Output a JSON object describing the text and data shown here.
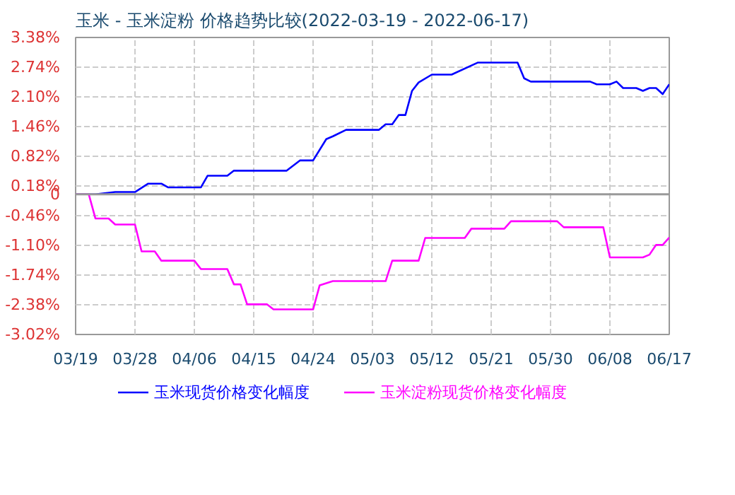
{
  "chart_data": {
    "type": "line",
    "title": "玉米 - 玉米淀粉 价格趋势比较(2022-03-19 - 2022-06-17)",
    "series": [
      {
        "name": "玉米现货价格变化幅度",
        "color": "#0000ff",
        "x": [
          "2022-03-19",
          "2022-03-22",
          "2022-03-25",
          "2022-03-28",
          "2022-03-30",
          "2022-04-01",
          "2022-04-02",
          "2022-04-07",
          "2022-04-08",
          "2022-04-11",
          "2022-04-12",
          "2022-04-20",
          "2022-04-22",
          "2022-04-24",
          "2022-04-26",
          "2022-04-27",
          "2022-04-29",
          "2022-05-04",
          "2022-05-05",
          "2022-05-06",
          "2022-05-07",
          "2022-05-08",
          "2022-05-09",
          "2022-05-10",
          "2022-05-12",
          "2022-05-15",
          "2022-05-19",
          "2022-05-25",
          "2022-05-26",
          "2022-05-27",
          "2022-06-05",
          "2022-06-06",
          "2022-06-08",
          "2022-06-09",
          "2022-06-10",
          "2022-06-12",
          "2022-06-13",
          "2022-06-14",
          "2022-06-15",
          "2022-06-16",
          "2022-06-17"
        ],
        "values": [
          0,
          0,
          0.05,
          0.05,
          0.23,
          0.23,
          0.15,
          0.15,
          0.4,
          0.4,
          0.51,
          0.51,
          0.73,
          0.73,
          1.19,
          1.25,
          1.39,
          1.39,
          1.51,
          1.51,
          1.71,
          1.71,
          2.23,
          2.41,
          2.58,
          2.58,
          2.84,
          2.84,
          2.5,
          2.43,
          2.43,
          2.37,
          2.37,
          2.43,
          2.29,
          2.29,
          2.23,
          2.29,
          2.29,
          2.16,
          2.37
        ]
      },
      {
        "name": "玉米淀粉现货价格变化幅度",
        "color": "#ff00ff",
        "x": [
          "2022-03-19",
          "2022-03-21",
          "2022-03-22",
          "2022-03-24",
          "2022-03-25",
          "2022-03-28",
          "2022-03-29",
          "2022-03-31",
          "2022-04-01",
          "2022-04-06",
          "2022-04-07",
          "2022-04-11",
          "2022-04-12",
          "2022-04-13",
          "2022-04-14",
          "2022-04-17",
          "2022-04-18",
          "2022-04-24",
          "2022-04-25",
          "2022-04-27",
          "2022-05-05",
          "2022-05-06",
          "2022-05-10",
          "2022-05-11",
          "2022-05-17",
          "2022-05-18",
          "2022-05-23",
          "2022-05-24",
          "2022-05-31",
          "2022-06-01",
          "2022-06-07",
          "2022-06-08",
          "2022-06-13",
          "2022-06-14",
          "2022-06-15",
          "2022-06-16",
          "2022-06-17"
        ],
        "values": [
          0,
          0,
          -0.52,
          -0.52,
          -0.65,
          -0.65,
          -1.23,
          -1.23,
          -1.43,
          -1.43,
          -1.61,
          -1.61,
          -1.94,
          -1.94,
          -2.37,
          -2.37,
          -2.48,
          -2.48,
          -1.96,
          -1.87,
          -1.87,
          -1.43,
          -1.43,
          -0.94,
          -0.94,
          -0.74,
          -0.74,
          -0.58,
          -0.58,
          -0.71,
          -0.71,
          -1.36,
          -1.36,
          -1.3,
          -1.09,
          -1.09,
          -0.93
        ]
      }
    ],
    "xlim": [
      "2022-03-19",
      "2022-06-17"
    ],
    "xticks": [
      {
        "value": "2022-03-19",
        "label": "03/19"
      },
      {
        "value": "2022-03-28",
        "label": "03/28"
      },
      {
        "value": "2022-04-06",
        "label": "04/06"
      },
      {
        "value": "2022-04-15",
        "label": "04/15"
      },
      {
        "value": "2022-04-24",
        "label": "04/24"
      },
      {
        "value": "2022-05-03",
        "label": "05/03"
      },
      {
        "value": "2022-05-12",
        "label": "05/12"
      },
      {
        "value": "2022-05-21",
        "label": "05/21"
      },
      {
        "value": "2022-05-30",
        "label": "05/30"
      },
      {
        "value": "2022-06-08",
        "label": "06/08"
      },
      {
        "value": "2022-06-17",
        "label": "06/17"
      }
    ],
    "ylim": [
      -3.02,
      3.38
    ],
    "yticks": [
      {
        "value": -3.02,
        "label": "-3.02%"
      },
      {
        "value": -2.38,
        "label": "-2.38%"
      },
      {
        "value": -1.74,
        "label": "-1.74%"
      },
      {
        "value": -1.1,
        "label": "-1.10%"
      },
      {
        "value": -0.46,
        "label": "-0.46%"
      },
      {
        "value": 0,
        "label": "0"
      },
      {
        "value": 0.18,
        "label": "0.18%"
      },
      {
        "value": 0.82,
        "label": "0.82%"
      },
      {
        "value": 1.46,
        "label": "1.46%"
      },
      {
        "value": 2.1,
        "label": "2.10%"
      },
      {
        "value": 2.74,
        "label": "2.74%"
      },
      {
        "value": 3.38,
        "label": "3.38%"
      }
    ],
    "ref_lines": [
      {
        "axis": "y",
        "value": 0,
        "color": "#999999"
      }
    ],
    "grid": true,
    "legend": "bottom",
    "marker": "none",
    "line_style": "solid"
  }
}
